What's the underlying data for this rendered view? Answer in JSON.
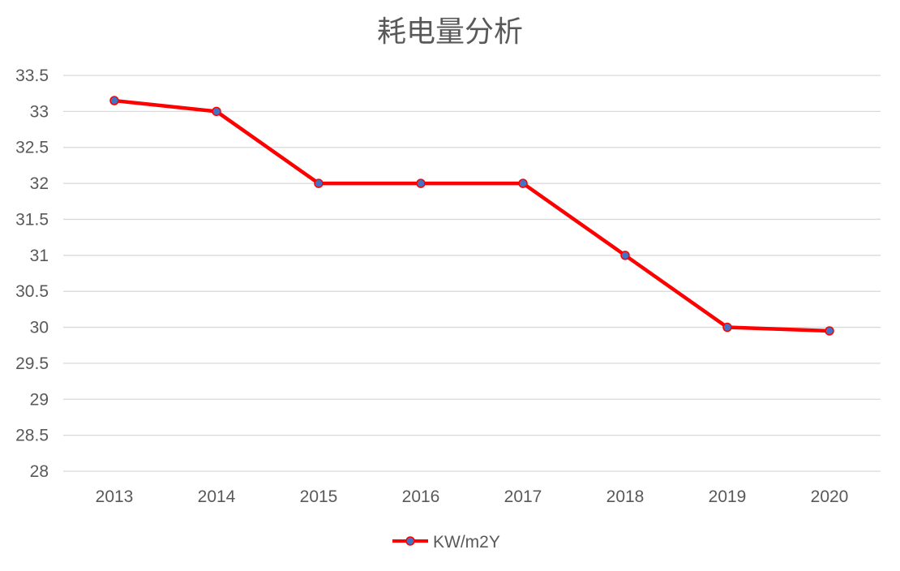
{
  "chart_data": {
    "type": "line",
    "title": "耗电量分析",
    "xlabel": "",
    "ylabel": "",
    "categories": [
      "2013",
      "2014",
      "2015",
      "2016",
      "2017",
      "2018",
      "2019",
      "2020"
    ],
    "series": [
      {
        "name": "KW/m2Y",
        "values": [
          33.15,
          33.0,
          32.0,
          32.0,
          32.0,
          31.0,
          30.0,
          29.95
        ],
        "line_color": "#ff0000",
        "marker_color": "#4472c4"
      }
    ],
    "ylim": [
      28,
      33.5
    ],
    "y_ticks": [
      "28",
      "28.5",
      "29",
      "29.5",
      "30",
      "30.5",
      "31",
      "31.5",
      "32",
      "32.5",
      "33",
      "33.5"
    ],
    "grid": true,
    "legend_position": "bottom"
  }
}
